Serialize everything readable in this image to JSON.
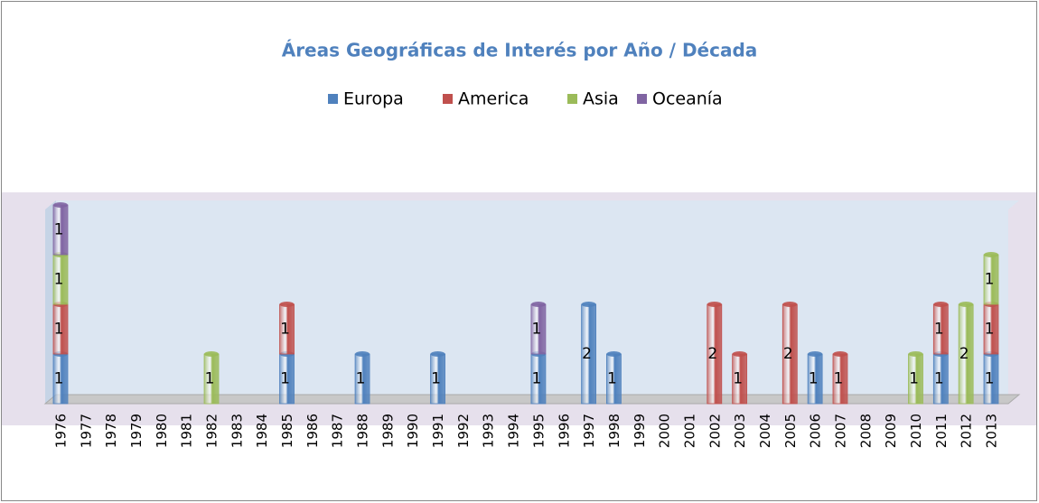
{
  "chart_data": {
    "type": "bar",
    "stacked": true,
    "title": "Áreas Geográficas de Interés por Año / Década",
    "categories": [
      "1976",
      "1977",
      "1978",
      "1979",
      "1980",
      "1981",
      "1982",
      "1983",
      "1984",
      "1985",
      "1986",
      "1987",
      "1988",
      "1989",
      "1990",
      "1991",
      "1992",
      "1993",
      "1994",
      "1995",
      "1996",
      "1997",
      "1998",
      "1999",
      "2000",
      "2001",
      "2002",
      "2003",
      "2004",
      "2005",
      "2006",
      "2007",
      "2008",
      "2009",
      "2010",
      "2011",
      "2012",
      "2013"
    ],
    "series": [
      {
        "name": "Europa",
        "color": "#4f81bd",
        "values": [
          1,
          null,
          null,
          null,
          null,
          null,
          null,
          null,
          null,
          1,
          null,
          null,
          1,
          null,
          null,
          1,
          null,
          null,
          null,
          1,
          null,
          2,
          1,
          null,
          null,
          null,
          null,
          null,
          null,
          null,
          1,
          null,
          null,
          null,
          null,
          1,
          null,
          1
        ]
      },
      {
        "name": "America",
        "color": "#c0504d",
        "values": [
          1,
          null,
          null,
          null,
          null,
          null,
          null,
          null,
          null,
          1,
          null,
          null,
          null,
          null,
          null,
          null,
          null,
          null,
          null,
          null,
          null,
          null,
          null,
          null,
          null,
          null,
          2,
          1,
          null,
          2,
          null,
          1,
          null,
          null,
          null,
          1,
          null,
          1
        ]
      },
      {
        "name": "Asia",
        "color": "#9bbb59",
        "values": [
          1,
          null,
          null,
          null,
          null,
          null,
          1,
          null,
          null,
          null,
          null,
          null,
          null,
          null,
          null,
          null,
          null,
          null,
          null,
          null,
          null,
          null,
          null,
          null,
          null,
          null,
          null,
          null,
          null,
          null,
          null,
          null,
          null,
          null,
          1,
          null,
          2,
          1
        ]
      },
      {
        "name": "Oceanía",
        "color": "#8064a2",
        "values": [
          1,
          null,
          null,
          null,
          null,
          null,
          null,
          null,
          null,
          null,
          null,
          null,
          null,
          null,
          null,
          null,
          null,
          null,
          null,
          1,
          null,
          null,
          null,
          null,
          null,
          null,
          null,
          null,
          null,
          null,
          null,
          null,
          null,
          null,
          null,
          null,
          null,
          null
        ]
      }
    ],
    "ylim": [
      0,
      4
    ]
  }
}
